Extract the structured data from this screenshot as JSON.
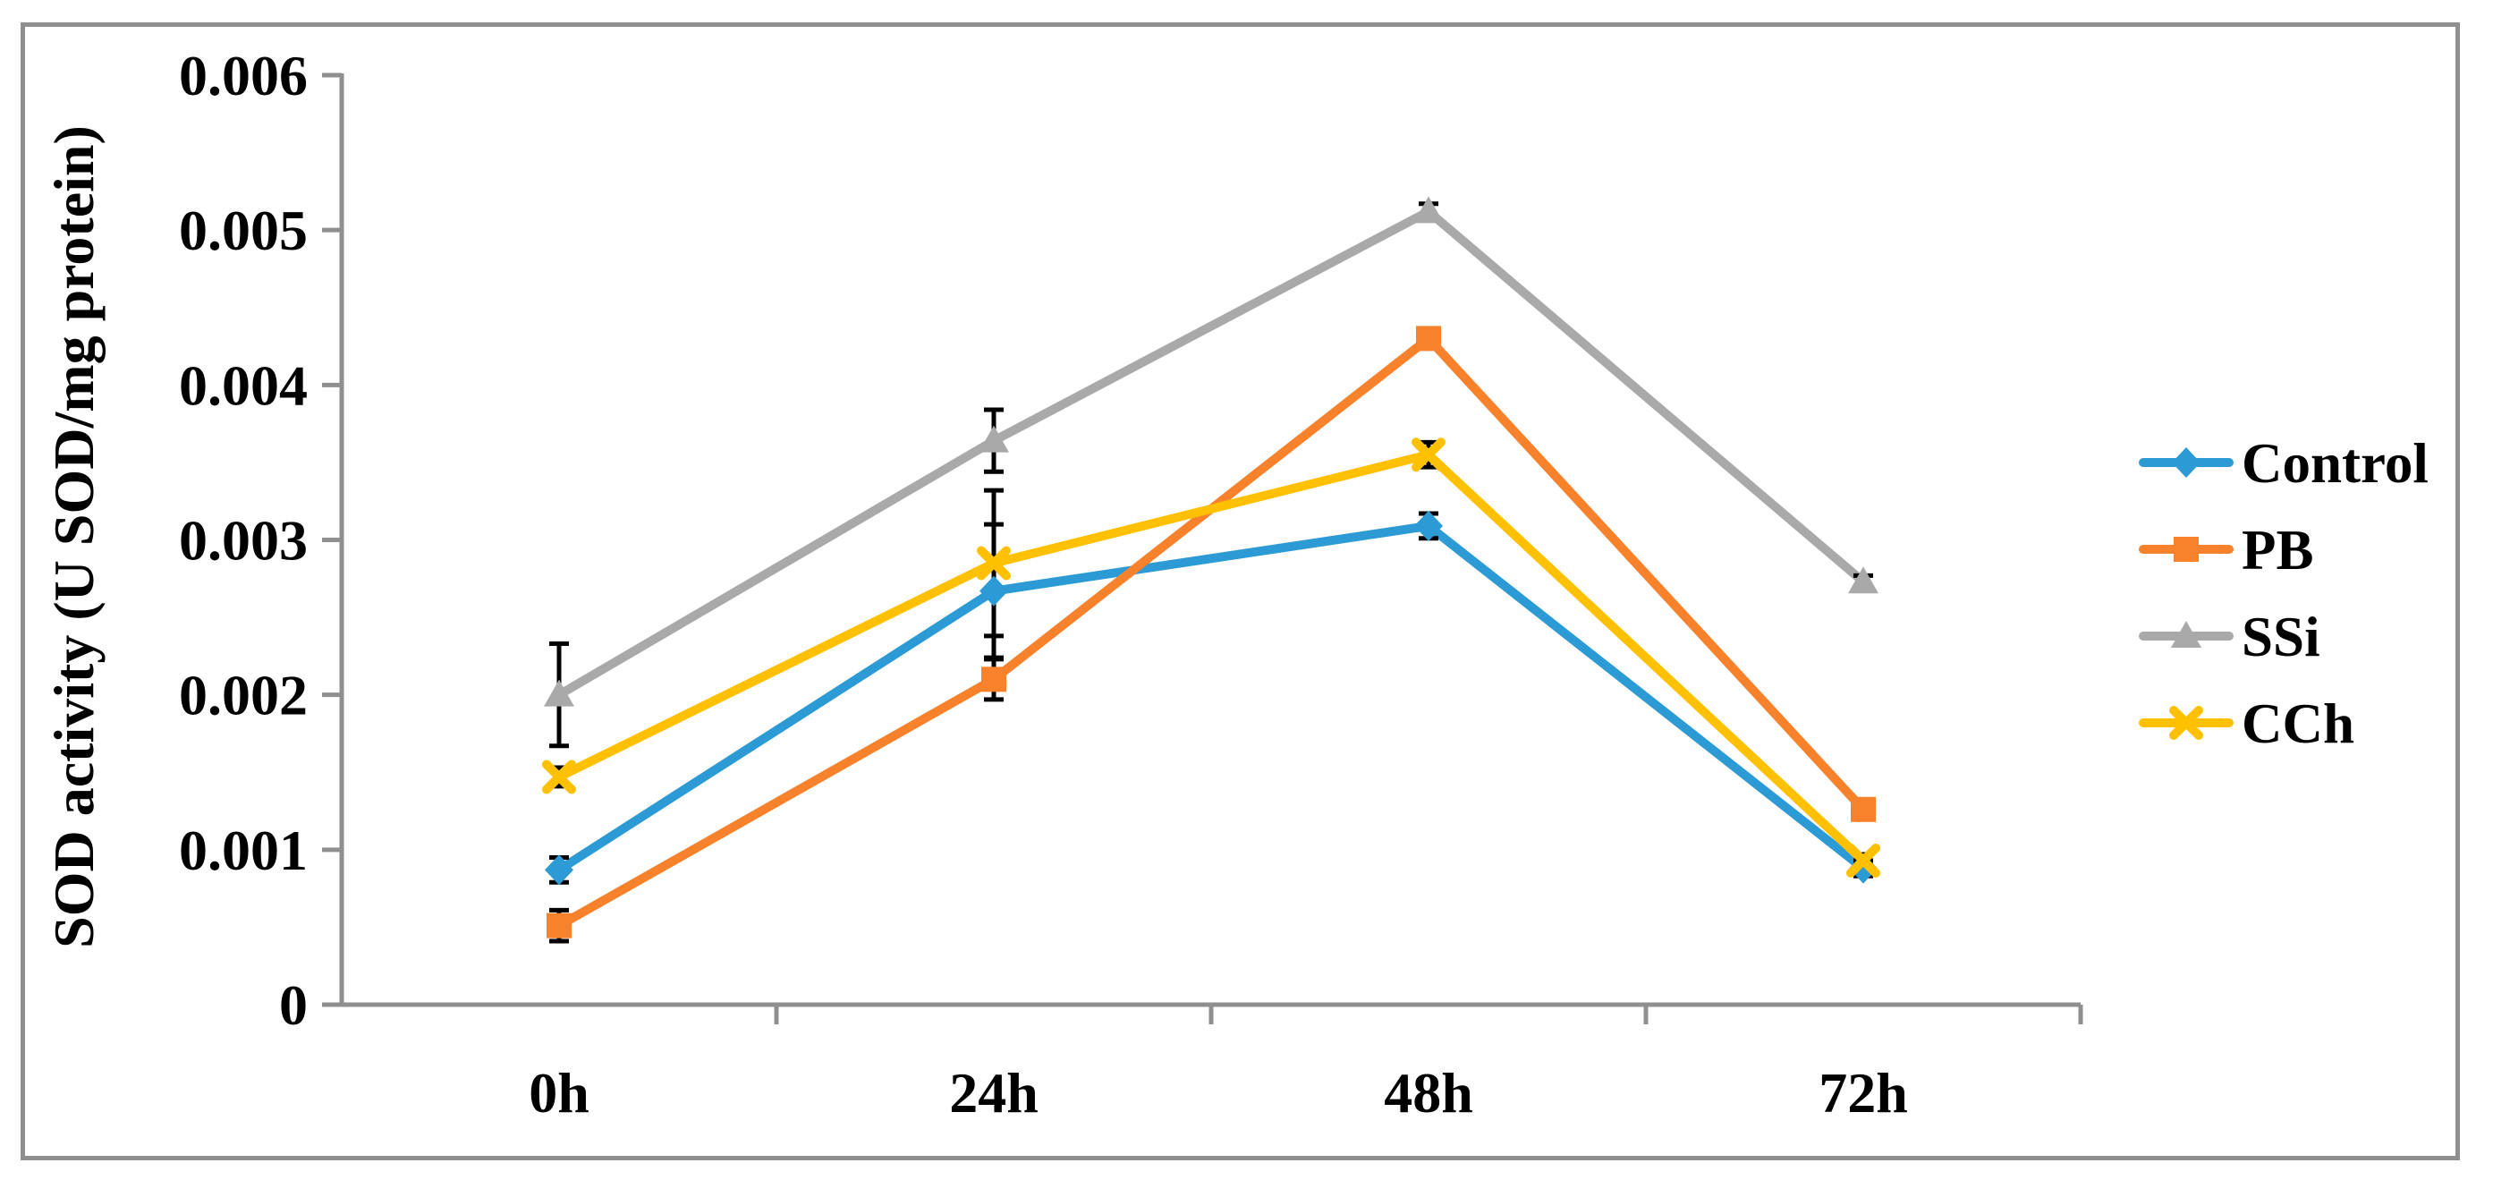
{
  "figure": {
    "background": "#FFFFFF",
    "border_color": "#8F8F8F",
    "axis_color": "#8F8F8F",
    "error_bar_color": "#000000"
  },
  "chart_data": {
    "type": "line",
    "title": "",
    "xlabel": "",
    "ylabel": "SOD activity (U SOD/mg protein)",
    "categories": [
      "0h",
      "24h",
      "48h",
      "72h"
    ],
    "ylim": [
      0,
      0.006
    ],
    "ytick_values": [
      0,
      0.001,
      0.002,
      0.003,
      0.004,
      0.005,
      0.006
    ],
    "ytick_labels": [
      "0",
      "0.001",
      "0.002",
      "0.003",
      "0.004",
      "0.005",
      "0.006"
    ],
    "grid": false,
    "legend_position": "right",
    "series": [
      {
        "name": "Control",
        "color": "#2B9AD5",
        "marker": "diamond",
        "values": [
          0.00087,
          0.00267,
          0.00309,
          0.00088
        ],
        "errors": [
          8e-05,
          0.00043,
          8e-05,
          5e-05
        ]
      },
      {
        "name": "PB",
        "color": "#F8812B",
        "marker": "square",
        "values": [
          0.00051,
          0.0021,
          0.0043,
          0.00126
        ],
        "errors": [
          0.0001,
          0.00013,
          4e-05,
          6e-05
        ]
      },
      {
        "name": "SSi",
        "color": "#A9A9A9",
        "marker": "triangle",
        "values": [
          0.002,
          0.00364,
          0.00512,
          0.00273
        ],
        "errors": [
          0.00033,
          0.0002,
          5e-05,
          4e-05
        ]
      },
      {
        "name": "CCh",
        "color": "#FFC000",
        "marker": "x",
        "values": [
          0.00147,
          0.00285,
          0.00355,
          0.00093
        ],
        "errors": [
          6e-05,
          0.00047,
          8e-05,
          4e-05
        ]
      }
    ]
  }
}
